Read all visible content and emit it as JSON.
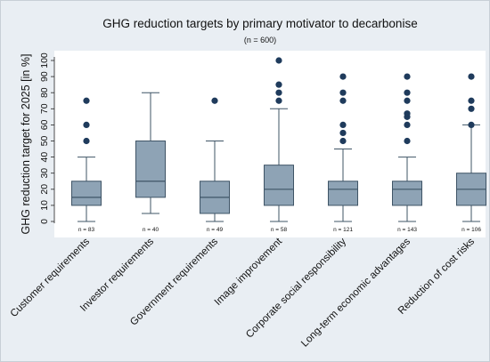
{
  "chart_data": {
    "type": "boxplot",
    "title": "GHG reduction targets by primary motivator to decarbonise",
    "subtitle": "(n = 600)",
    "ylabel": "GHG reduction target for 2025 [in %]",
    "xlabel": "",
    "ylim": [
      0,
      100
    ],
    "yticks": [
      0,
      10,
      20,
      30,
      40,
      50,
      60,
      70,
      80,
      90,
      100
    ],
    "grid": false,
    "colors": {
      "box_fill": "#8ea3b5",
      "box_stroke": "#3f5466",
      "outlier": "#1f3b5c",
      "plot_bg": "#ffffff",
      "frame_bg": "#e9eef3"
    },
    "boxes": [
      {
        "category": "Customer requirements",
        "n_label": "n = 83",
        "min": 0,
        "q1": 10,
        "median": 15,
        "q3": 25,
        "max": 40,
        "outliers": [
          50,
          60,
          75
        ]
      },
      {
        "category": "Investor requirements",
        "n_label": "n = 40",
        "min": 5,
        "q1": 15,
        "median": 25,
        "q3": 50,
        "max": 80,
        "outliers": []
      },
      {
        "category": "Government requirements",
        "n_label": "n = 49",
        "min": 0,
        "q1": 5,
        "median": 15,
        "q3": 25,
        "max": 50,
        "outliers": [
          75
        ]
      },
      {
        "category": "Image improvement",
        "n_label": "n = 58",
        "min": 0,
        "q1": 10,
        "median": 20,
        "q3": 35,
        "max": 70,
        "outliers": [
          75,
          80,
          85,
          100
        ]
      },
      {
        "category": "Corporate social responsibility",
        "n_label": "n = 121",
        "min": 0,
        "q1": 10,
        "median": 20,
        "q3": 25,
        "max": 45,
        "outliers": [
          50,
          55,
          60,
          75,
          80,
          90
        ]
      },
      {
        "category": "Long-term economic advantages",
        "n_label": "n = 143",
        "min": 0,
        "q1": 10,
        "median": 20,
        "q3": 25,
        "max": 40,
        "outliers": [
          50,
          60,
          65,
          67,
          75,
          80,
          90
        ]
      },
      {
        "category": "Reduction of cost risks",
        "n_label": "n = 106",
        "min": 0,
        "q1": 10,
        "median": 20,
        "q3": 30,
        "max": 60,
        "outliers": [
          60,
          70,
          75,
          90
        ]
      }
    ]
  }
}
